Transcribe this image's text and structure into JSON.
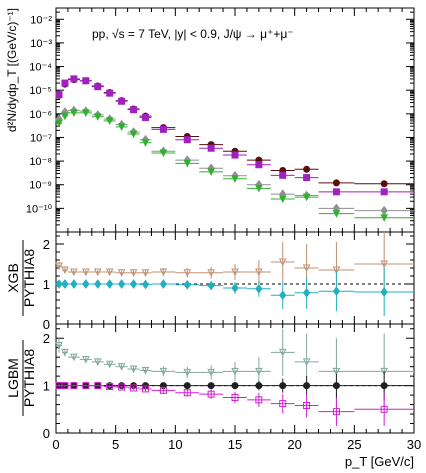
{
  "chart_data": {
    "type": "scatter",
    "x_axis": {
      "label": "p_T [GeV/c]",
      "range": [
        0,
        30
      ],
      "ticks": [
        0,
        5,
        10,
        15,
        20,
        25,
        30
      ]
    },
    "top_panel": {
      "ylabel": "d²N/dydp_T [(GeV/c)⁻¹]",
      "annotation": "pp, √s = 7 TeV, |y| < 0.9, J/ψ → μ⁺+μ⁻",
      "yscale": "log",
      "ylim": [
        1e-11,
        0.03
      ],
      "ytick_labels": [
        "10⁻¹⁰",
        "10⁻⁹",
        "10⁻⁸",
        "10⁻⁷",
        "10⁻⁶",
        "10⁻⁵",
        "10⁻⁴",
        "10⁻³",
        "10⁻²"
      ],
      "ytick_values": [
        1e-10,
        1e-09,
        1e-08,
        1e-07,
        1e-06,
        1e-05,
        0.0001,
        0.001,
        0.01
      ],
      "series": [
        {
          "color": "#5a0f0f",
          "marker": "circle",
          "x": [
            0.25,
            0.75,
            1.5,
            2.5,
            3.5,
            4.5,
            5.5,
            6.5,
            7.5,
            9,
            11,
            13,
            15,
            17,
            19,
            21,
            23.5,
            27.5
          ],
          "xerr": [
            0.25,
            0.25,
            0.5,
            0.5,
            0.5,
            0.5,
            0.5,
            0.5,
            0.5,
            1,
            1,
            1,
            1,
            1,
            1,
            1,
            1.5,
            2.5
          ],
          "y": [
            6e-06,
            1.8e-05,
            2.8e-05,
            2.5e-05,
            1.5e-05,
            8e-06,
            3.6e-06,
            1.6e-06,
            8e-07,
            2.6e-07,
            1.1e-07,
            5e-08,
            2.6e-08,
            1.1e-08,
            4e-09,
            4.5e-09,
            1.2e-09,
            1.1e-09
          ]
        },
        {
          "color": "#a020c0",
          "marker": "square",
          "x": [
            0.25,
            0.75,
            1.5,
            2.5,
            3.5,
            4.5,
            5.5,
            6.5,
            7.5,
            9,
            11,
            13,
            15,
            17,
            19,
            21,
            23.5,
            27.5
          ],
          "xerr": [
            0.25,
            0.25,
            0.5,
            0.5,
            0.5,
            0.5,
            0.5,
            0.5,
            0.5,
            1,
            1,
            1,
            1,
            1,
            1,
            1,
            1.5,
            2.5
          ],
          "y": [
            6.5e-06,
            2e-05,
            3e-05,
            2.5e-05,
            1.4e-05,
            7.5e-06,
            3.4e-06,
            1.5e-06,
            7e-07,
            2.2e-07,
            8e-08,
            3.5e-08,
            1.8e-08,
            7e-09,
            2.5e-09,
            2e-09,
            5e-10,
            5e-10
          ]
        },
        {
          "color": "#909090",
          "marker": "diamond",
          "x": [
            0.25,
            0.75,
            1.5,
            2.5,
            3.5,
            4.5,
            5.5,
            6.5,
            7.5,
            9,
            11,
            13,
            15,
            17,
            19,
            21,
            23.5,
            27.5
          ],
          "xerr": [
            0.25,
            0.25,
            0.5,
            0.5,
            0.5,
            0.5,
            0.5,
            0.5,
            0.5,
            1,
            1,
            1,
            1,
            1,
            1,
            1,
            1.5,
            2.5
          ],
          "y": [
            6e-07,
            1.2e-06,
            1.4e-06,
            1.3e-06,
            9e-07,
            6e-07,
            3.5e-07,
            1.7e-07,
            8e-08,
            2.6e-08,
            1.1e-08,
            5e-09,
            2.4e-09,
            1e-09,
            4e-10,
            3.5e-10,
            1e-10,
            8e-11
          ]
        },
        {
          "color": "#30b030",
          "marker": "triangle-down",
          "x": [
            0.25,
            0.75,
            1.5,
            2.5,
            3.5,
            4.5,
            5.5,
            6.5,
            7.5,
            9,
            11,
            13,
            15,
            17,
            19,
            21,
            23.5,
            27.5
          ],
          "xerr": [
            0.25,
            0.25,
            0.5,
            0.5,
            0.5,
            0.5,
            0.5,
            0.5,
            0.5,
            1,
            1,
            1,
            1,
            1,
            1,
            1,
            1.5,
            2.5
          ],
          "y": [
            4e-07,
            8e-07,
            1.1e-06,
            1.1e-06,
            7.5e-07,
            5e-07,
            2.8e-07,
            1.4e-07,
            6e-08,
            2.2e-08,
            8e-09,
            3.5e-09,
            1.8e-09,
            7e-10,
            2.5e-10,
            3e-10,
            6e-11,
            4e-11
          ]
        }
      ]
    },
    "middle_panel": {
      "ylabel_numerator": "XGB",
      "ylabel_denominator": "PYTHIA8",
      "ylim": [
        0,
        2.3
      ],
      "ytick_labels": [
        "0",
        "1",
        "2"
      ],
      "ytick_values": [
        0,
        1,
        2
      ],
      "reference_line": 1,
      "series": [
        {
          "color": "#c09070",
          "marker": "triangle-down-open",
          "x": [
            0.25,
            0.75,
            1.5,
            2.5,
            3.5,
            4.5,
            5.5,
            6.5,
            7.5,
            9,
            11,
            13,
            15,
            17,
            19,
            21,
            23.5,
            27.5
          ],
          "y": [
            1.45,
            1.35,
            1.3,
            1.3,
            1.3,
            1.3,
            1.28,
            1.28,
            1.28,
            1.3,
            1.28,
            1.28,
            1.3,
            1.3,
            1.55,
            1.4,
            1.35,
            1.5
          ],
          "yerr": [
            0.1,
            0.06,
            0.05,
            0.05,
            0.05,
            0.06,
            0.06,
            0.07,
            0.08,
            0.1,
            0.12,
            0.15,
            0.2,
            0.3,
            0.5,
            0.6,
            0.7,
            0.8
          ]
        },
        {
          "color": "#20b0c0",
          "marker": "diamond",
          "x": [
            0.25,
            0.75,
            1.5,
            2.5,
            3.5,
            4.5,
            5.5,
            6.5,
            7.5,
            9,
            11,
            13,
            15,
            17,
            19,
            21,
            23.5,
            27.5
          ],
          "y": [
            1.0,
            1.0,
            1.0,
            1.0,
            1.0,
            1.0,
            1.0,
            1.0,
            0.99,
            1.0,
            0.98,
            0.96,
            0.9,
            0.88,
            0.72,
            0.78,
            0.82,
            0.8
          ],
          "yerr": [
            0.04,
            0.03,
            0.03,
            0.03,
            0.03,
            0.03,
            0.04,
            0.04,
            0.05,
            0.06,
            0.08,
            0.1,
            0.15,
            0.2,
            0.35,
            0.4,
            0.5,
            0.6
          ]
        }
      ]
    },
    "bottom_panel": {
      "ylabel_numerator": "LGBM",
      "ylabel_denominator": "PYTHIA8",
      "ylim": [
        0,
        2.3
      ],
      "ytick_labels": [
        "0",
        "1",
        "2"
      ],
      "ytick_values": [
        0,
        1,
        2
      ],
      "reference_line": 1,
      "series": [
        {
          "color": "#80a8a0",
          "marker": "triangle-down-open",
          "x": [
            0.25,
            0.75,
            1.5,
            2.5,
            3.5,
            4.5,
            5.5,
            6.5,
            7.5,
            9,
            11,
            13,
            15,
            17,
            19,
            21,
            23.5,
            27.5
          ],
          "y": [
            1.85,
            1.7,
            1.6,
            1.55,
            1.5,
            1.45,
            1.4,
            1.35,
            1.32,
            1.3,
            1.28,
            1.28,
            1.3,
            1.3,
            1.7,
            1.5,
            1.3,
            1.3
          ],
          "yerr": [
            0.15,
            0.08,
            0.06,
            0.06,
            0.06,
            0.06,
            0.07,
            0.07,
            0.08,
            0.1,
            0.12,
            0.15,
            0.2,
            0.3,
            0.5,
            0.6,
            0.7,
            0.8
          ]
        },
        {
          "color": "#202020",
          "marker": "circle",
          "x": [
            0.25,
            0.75,
            1.5,
            2.5,
            3.5,
            4.5,
            5.5,
            6.5,
            7.5,
            9,
            11,
            13,
            15,
            17,
            19,
            21,
            23.5,
            27.5
          ],
          "y": [
            1.0,
            1.0,
            1.0,
            1.0,
            1.0,
            1.0,
            1.0,
            1.0,
            1.0,
            1.0,
            1.0,
            1.0,
            1.0,
            1.0,
            1.0,
            1.0,
            1.0,
            1.0
          ],
          "yerr": [
            0.03,
            0.02,
            0.02,
            0.02,
            0.02,
            0.02,
            0.03,
            0.03,
            0.03,
            0.04,
            0.05,
            0.06,
            0.08,
            0.1,
            0.15,
            0.2,
            0.25,
            0.3
          ]
        },
        {
          "color": "#d020d0",
          "marker": "square-open",
          "x": [
            0.25,
            0.75,
            1.5,
            2.5,
            3.5,
            4.5,
            5.5,
            6.5,
            7.5,
            9,
            11,
            13,
            15,
            17,
            19,
            21,
            23.5,
            27.5
          ],
          "y": [
            1.0,
            1.0,
            1.0,
            1.0,
            1.0,
            0.98,
            0.97,
            0.95,
            0.93,
            0.9,
            0.85,
            0.82,
            0.75,
            0.7,
            0.62,
            0.58,
            0.45,
            0.5
          ],
          "yerr": [
            0.03,
            0.02,
            0.02,
            0.02,
            0.02,
            0.03,
            0.03,
            0.04,
            0.05,
            0.06,
            0.08,
            0.1,
            0.12,
            0.15,
            0.2,
            0.25,
            0.3,
            0.35
          ]
        }
      ]
    }
  }
}
